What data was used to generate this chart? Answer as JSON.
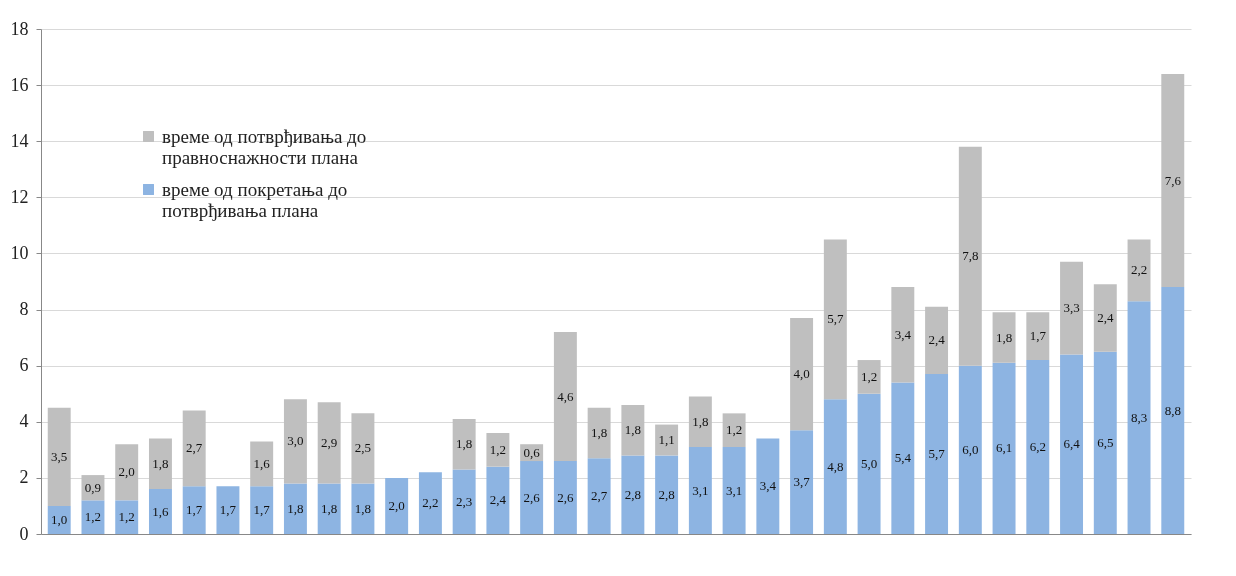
{
  "chart_data": {
    "type": "bar",
    "stacked": true,
    "categories": [
      null,
      null,
      null,
      null,
      null,
      null,
      null,
      null,
      null,
      null,
      null,
      null,
      null,
      null,
      null,
      null,
      null,
      null,
      null,
      null,
      null,
      null,
      null,
      null,
      null,
      null,
      null,
      null,
      null,
      null,
      null,
      null,
      null,
      null
    ],
    "series": [
      {
        "name": "време од покретања до потврђивања плана",
        "color": "#8db4e2",
        "values": [
          1.0,
          1.2,
          1.2,
          1.6,
          1.7,
          1.7,
          1.7,
          1.8,
          1.8,
          1.8,
          2.0,
          2.2,
          2.3,
          2.4,
          2.6,
          2.6,
          2.7,
          2.8,
          2.8,
          3.1,
          3.1,
          3.4,
          3.7,
          4.8,
          5.0,
          5.4,
          5.7,
          6.0,
          6.1,
          6.2,
          6.4,
          6.5,
          8.3,
          8.8
        ],
        "value_labels": [
          "1,0",
          "1,2",
          "1,2",
          "1,6",
          "1,7",
          "1,7",
          "1,7",
          "1,8",
          "1,8",
          "1,8",
          "2,0",
          "2,2",
          "2,3",
          "2,4",
          "2,6",
          "2,6",
          "2,7",
          "2,8",
          "2,8",
          "3,1",
          "3,1",
          "3,4",
          "3,7",
          "4,8",
          "5,0",
          "5,4",
          "5,7",
          "6,0",
          "6,1",
          "6,2",
          "6,4",
          "6,5",
          "8,3",
          "8,8"
        ]
      },
      {
        "name": "време од потврђивања до правноснажности плана",
        "color": "#bfbfbf",
        "values": [
          3.5,
          0.9,
          2.0,
          1.8,
          2.7,
          null,
          1.6,
          3.0,
          2.9,
          2.5,
          null,
          null,
          1.8,
          1.2,
          0.6,
          4.6,
          1.8,
          1.8,
          1.1,
          1.8,
          1.2,
          null,
          4.0,
          5.7,
          1.2,
          3.4,
          2.4,
          7.8,
          1.8,
          1.7,
          3.3,
          2.4,
          2.2,
          7.6
        ],
        "value_labels": [
          "3,5",
          "0,9",
          "2,0",
          "1,8",
          "2,7",
          null,
          "1,6",
          "3,0",
          "2,9",
          "2,5",
          null,
          null,
          "1,8",
          "1,2",
          "0,6",
          "4,6",
          "1,8",
          "1,8",
          "1,1",
          "1,8",
          "1,2",
          null,
          "4,0",
          "5,7",
          "1,2",
          "3,4",
          "2,4",
          "7,8",
          "1,8",
          "1,7",
          "3,3",
          "2,4",
          "2,2",
          "7,6"
        ]
      }
    ],
    "ylim": [
      0,
      18
    ],
    "yticks": [
      0,
      2,
      4,
      6,
      8,
      10,
      12,
      14,
      16,
      18
    ],
    "grid": "y",
    "legend": "top left"
  }
}
